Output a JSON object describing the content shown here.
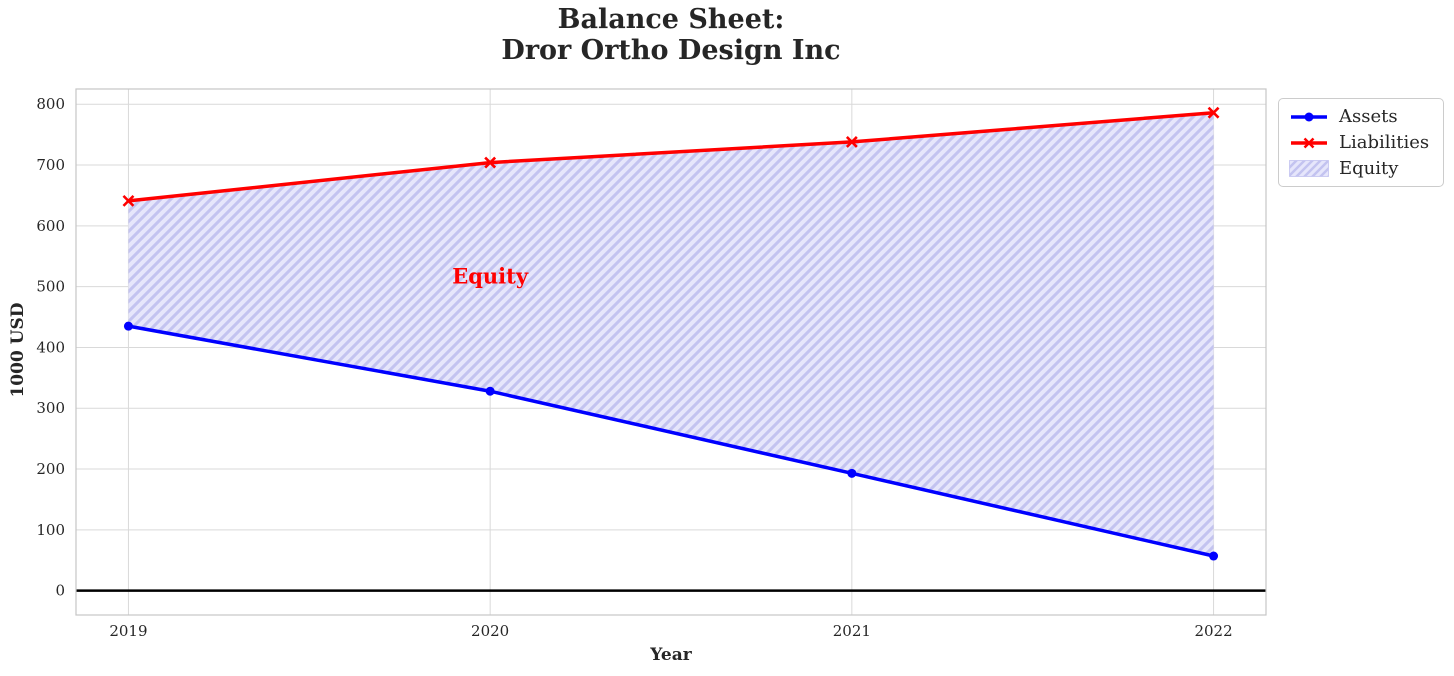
{
  "chart_data": {
    "type": "line",
    "title": "Balance Sheet:\nDror Ortho Design Inc",
    "title_lines": [
      "Balance Sheet:",
      "Dror Ortho Design Inc"
    ],
    "xlabel": "Year",
    "ylabel": "1000 USD",
    "x": [
      2019,
      2020,
      2021,
      2022
    ],
    "series": [
      {
        "name": "Assets",
        "marker": "circle",
        "line_width": 3.5,
        "values": [
          435,
          328,
          193,
          57
        ]
      },
      {
        "name": "Liabilities",
        "marker": "x",
        "line_width": 3.5,
        "values": [
          641,
          704,
          738,
          786
        ]
      }
    ],
    "area": {
      "label": "Equity",
      "between": [
        "Assets",
        "Liabilities"
      ],
      "hatch": "/"
    },
    "annotation": {
      "text": "Equity",
      "x": 2020,
      "y": 517
    },
    "axes": {
      "xtick_labels": [
        "2019",
        "2020",
        "2021",
        "2022"
      ],
      "xtick_values": [
        2019,
        2020,
        2021,
        2022
      ],
      "ytick_labels": [
        "0",
        "100",
        "200",
        "300",
        "400",
        "500",
        "600",
        "700",
        "800"
      ],
      "ytick_values": [
        0,
        100,
        200,
        300,
        400,
        500,
        600,
        700,
        800
      ],
      "xlim": [
        2018.855,
        2022.145
      ],
      "ylim": [
        -40,
        825
      ],
      "grid": true,
      "zero_line": true
    },
    "legend": {
      "position": "upper right outside",
      "entries": [
        {
          "label": "Assets",
          "swatch": "line-circle"
        },
        {
          "label": "Liabilities",
          "swatch": "line-x"
        },
        {
          "label": "Equity",
          "swatch": "hatch-patch"
        }
      ]
    },
    "colors": {
      "assets": "#0000ff",
      "liabilities": "#ff0000",
      "equity_fill": "#e6e6fb",
      "equity_hatch": "#c3c3f0",
      "annotation": "#ff0000",
      "grid": "#d9d9d9",
      "spine": "#c6c6c6",
      "text": "#262626",
      "zero_line": "#000000"
    }
  }
}
